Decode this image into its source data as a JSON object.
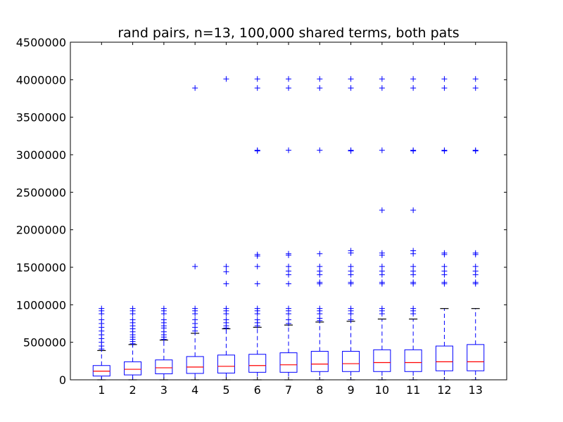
{
  "chart_data": {
    "type": "box",
    "title": "rand pairs, n=13, 100,000 shared terms, both pats",
    "xlabel": "",
    "ylabel": "",
    "ylim": [
      0,
      4500000
    ],
    "yticks": [
      0,
      500000,
      1000000,
      1500000,
      2000000,
      2500000,
      3000000,
      3500000,
      4000000,
      4500000
    ],
    "ytick_labels": [
      "0",
      "500000",
      "1000000",
      "1500000",
      "2000000",
      "2500000",
      "3000000",
      "3500000",
      "4000000",
      "4500000"
    ],
    "categories": [
      "1",
      "2",
      "3",
      "4",
      "5",
      "6",
      "7",
      "8",
      "9",
      "10",
      "11",
      "12",
      "13"
    ],
    "grid": false,
    "colors": {
      "box": "#0000ff",
      "median": "#ff0000",
      "cap": "#000000",
      "flier": "#0000ff",
      "axes": "#000000"
    },
    "boxes": [
      {
        "q1": 50000,
        "median": 115000,
        "q3": 190000,
        "whisker_low": 0,
        "whisker_high": 390000,
        "fliers": [
          410000,
          450000,
          500000,
          550000,
          600000,
          650000,
          700000,
          750000,
          800000,
          880000,
          920000,
          950000
        ]
      },
      {
        "q1": 65000,
        "median": 140000,
        "q3": 240000,
        "whisker_low": 0,
        "whisker_high": 470000,
        "fliers": [
          480000,
          510000,
          540000,
          570000,
          600000,
          640000,
          680000,
          720000,
          760000,
          800000,
          880000,
          920000,
          950000
        ]
      },
      {
        "q1": 80000,
        "median": 160000,
        "q3": 265000,
        "whisker_low": 0,
        "whisker_high": 530000,
        "fliers": [
          540000,
          570000,
          600000,
          640000,
          690000,
          720000,
          760000,
          800000,
          880000,
          920000,
          950000
        ]
      },
      {
        "q1": 85000,
        "median": 170000,
        "q3": 310000,
        "whisker_low": 0,
        "whisker_high": 620000,
        "fliers": [
          650000,
          700000,
          750000,
          800000,
          880000,
          920000,
          950000,
          1510000,
          3890000
        ]
      },
      {
        "q1": 90000,
        "median": 180000,
        "q3": 330000,
        "whisker_low": 0,
        "whisker_high": 680000,
        "fliers": [
          690000,
          720000,
          760000,
          800000,
          880000,
          920000,
          950000,
          1280000,
          1440000,
          1510000,
          4010000
        ]
      },
      {
        "q1": 100000,
        "median": 190000,
        "q3": 340000,
        "whisker_low": 0,
        "whisker_high": 700000,
        "fliers": [
          720000,
          760000,
          800000,
          880000,
          920000,
          950000,
          1280000,
          1510000,
          1650000,
          1670000,
          3050000,
          3060000,
          3890000,
          4010000
        ]
      },
      {
        "q1": 100000,
        "median": 200000,
        "q3": 360000,
        "whisker_low": 0,
        "whisker_high": 730000,
        "fliers": [
          750000,
          800000,
          880000,
          920000,
          950000,
          1280000,
          1400000,
          1450000,
          1510000,
          1660000,
          1680000,
          3060000,
          3890000,
          4010000
        ]
      },
      {
        "q1": 110000,
        "median": 210000,
        "q3": 380000,
        "whisker_low": 0,
        "whisker_high": 770000,
        "fliers": [
          790000,
          820000,
          880000,
          920000,
          950000,
          1280000,
          1300000,
          1400000,
          1450000,
          1510000,
          1680000,
          3060000,
          3890000,
          4010000
        ]
      },
      {
        "q1": 110000,
        "median": 215000,
        "q3": 380000,
        "whisker_low": 0,
        "whisker_high": 780000,
        "fliers": [
          800000,
          880000,
          920000,
          950000,
          1280000,
          1300000,
          1400000,
          1450000,
          1510000,
          1690000,
          1720000,
          3050000,
          3060000,
          3890000,
          4010000
        ]
      },
      {
        "q1": 110000,
        "median": 230000,
        "q3": 400000,
        "whisker_low": 0,
        "whisker_high": 810000,
        "fliers": [
          880000,
          920000,
          950000,
          1280000,
          1300000,
          1400000,
          1450000,
          1510000,
          1660000,
          1690000,
          2260000,
          3060000,
          3890000,
          4010000
        ]
      },
      {
        "q1": 110000,
        "median": 230000,
        "q3": 400000,
        "whisker_low": 0,
        "whisker_high": 810000,
        "fliers": [
          880000,
          920000,
          950000,
          1280000,
          1300000,
          1400000,
          1450000,
          1510000,
          1680000,
          1720000,
          2260000,
          3050000,
          3060000,
          3890000,
          4010000
        ]
      },
      {
        "q1": 120000,
        "median": 240000,
        "q3": 450000,
        "whisker_low": 0,
        "whisker_high": 950000,
        "fliers": [
          1280000,
          1300000,
          1400000,
          1450000,
          1510000,
          1670000,
          1690000,
          3050000,
          3060000,
          3890000,
          4010000
        ]
      },
      {
        "q1": 120000,
        "median": 240000,
        "q3": 470000,
        "whisker_low": 0,
        "whisker_high": 950000,
        "fliers": [
          1280000,
          1300000,
          1400000,
          1450000,
          1510000,
          1670000,
          1690000,
          3050000,
          3060000,
          3890000,
          4010000
        ]
      }
    ]
  }
}
